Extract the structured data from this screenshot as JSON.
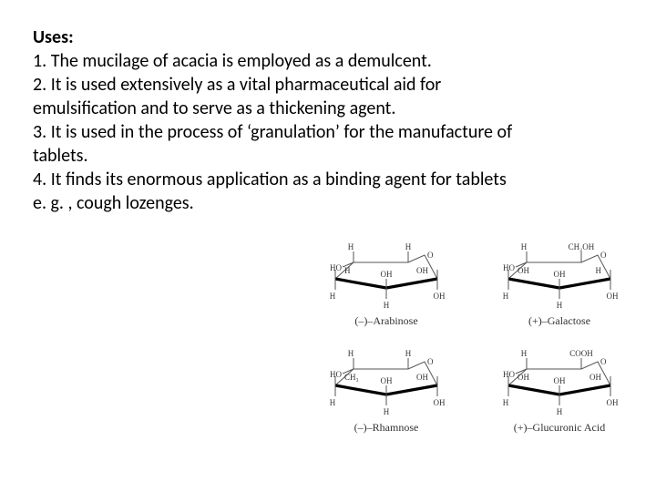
{
  "heading": "Uses:",
  "lines": [
    "1. The mucilage of acacia is employed as a demulcent.",
    "2. It is used extensively as a vital pharmaceutical aid for",
    "emulsification and to serve as a thickening agent.",
    "3. It is used in the process of ‘granulation’ for the manufacture of",
    "tablets.",
    "4. It finds its enormous application as a binding agent for tablets",
    "e. g. , cough lozenges."
  ],
  "molecules": [
    {
      "label": "(–)–Arabinose",
      "top_left": "HO",
      "top_left_upper": "H",
      "top_right_upper": "H",
      "inner_left": "H",
      "inner_right": "OH",
      "bottom_left": "H",
      "bottom_right": "OH"
    },
    {
      "label": "(+)–Galactose",
      "top_left": "HO",
      "top_left_upper": "H",
      "top_right_upper": "CH₂OH",
      "inner_left": "OH",
      "inner_right": "H",
      "bottom_left": "H",
      "bottom_right": "OH"
    },
    {
      "label": "(–)–Rhamnose",
      "top_left": "HO",
      "top_left_upper": "H",
      "top_right_upper": "H",
      "inner_left": "CH₃",
      "inner_right": "OH",
      "bottom_left": "H",
      "bottom_right": "OH"
    },
    {
      "label": "(+)–Glucuronic Acid",
      "top_left": "HO",
      "top_left_upper": "H",
      "top_right_upper": "COOH",
      "inner_left": "OH",
      "inner_right": "OH",
      "bottom_left": "H",
      "bottom_right": "OH"
    }
  ],
  "svg": {
    "stroke": "#555555",
    "thick_stroke": "#000000",
    "text_fill": "#333333",
    "font_family": "Times New Roman, serif",
    "font_size": 9
  }
}
